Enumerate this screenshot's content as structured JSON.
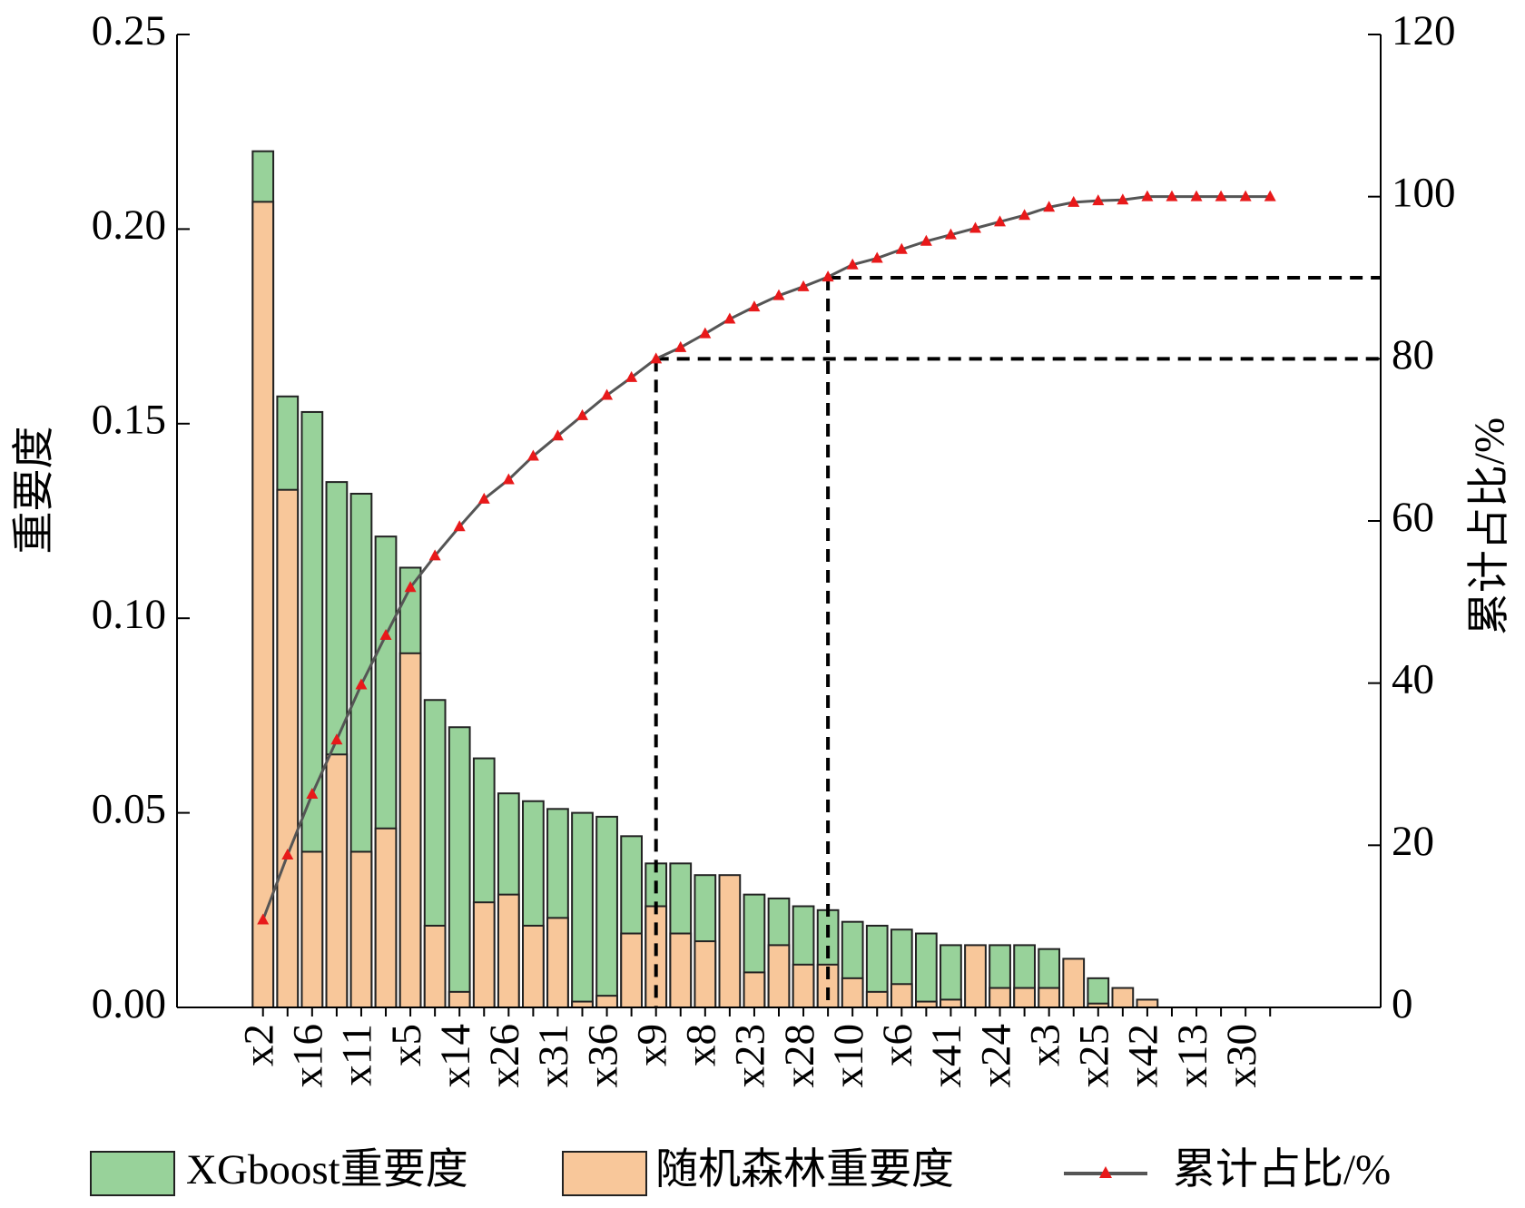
{
  "chart_data": {
    "type": "bar",
    "y_label": "重要度",
    "y2_label": "累计占比/%",
    "categories": [
      "x2",
      null,
      "x16",
      null,
      "x11",
      null,
      "x5",
      null,
      "x14",
      null,
      "x26",
      null,
      "x31",
      null,
      "x36",
      null,
      "x9",
      null,
      "x8",
      null,
      "x23",
      null,
      "x28",
      null,
      "x10",
      null,
      "x6",
      null,
      "x41",
      null,
      "x24",
      null,
      "x3",
      null,
      "x25",
      null,
      "x42",
      null,
      "x13",
      null,
      "x30",
      null
    ],
    "series": [
      {
        "name": "XGboost重要度",
        "color": "#98d29a",
        "values": [
          0.22,
          0.157,
          0.153,
          0.135,
          0.132,
          0.121,
          0.113,
          0.079,
          0.072,
          0.064,
          0.055,
          0.053,
          0.051,
          0.05,
          0.049,
          0.044,
          0.037,
          0.037,
          0.034,
          0,
          0.029,
          0.028,
          0.026,
          0.025,
          0.022,
          0.021,
          0.02,
          0.019,
          0.016,
          0,
          0.016,
          0.016,
          0.015,
          0,
          0.0075,
          0,
          0,
          0,
          0,
          0,
          0,
          0
        ]
      },
      {
        "name": "随机森林重要度",
        "color": "#f8c79a",
        "values": [
          0.207,
          0.133,
          0.04,
          0.065,
          0.04,
          0.046,
          0.091,
          0.021,
          0.004,
          0.027,
          0.029,
          0.021,
          0.023,
          0.0015,
          0.003,
          0.019,
          0.026,
          0.019,
          0.017,
          0.034,
          0.009,
          0.016,
          0.011,
          0.011,
          0.0075,
          0.004,
          0.006,
          0.0015,
          0.002,
          0.016,
          0.005,
          0.005,
          0.005,
          0.0125,
          0.001,
          0.005,
          0.002,
          0,
          0,
          0,
          0,
          0
        ]
      },
      {
        "name": "累计占比/%",
        "type": "line",
        "axis": "y2",
        "color": "#555555",
        "marker_color": "#e8191a",
        "values": [
          10.8,
          18.8,
          26.3,
          33.0,
          39.8,
          45.9,
          51.8,
          55.7,
          59.3,
          62.7,
          65.1,
          68.0,
          70.5,
          73.0,
          75.5,
          77.7,
          80.0,
          81.4,
          83.1,
          84.9,
          86.4,
          87.8,
          88.9,
          90.1,
          91.6,
          92.4,
          93.5,
          94.5,
          95.3,
          96.1,
          96.9,
          97.7,
          98.7,
          99.3,
          99.5,
          99.6,
          100,
          100,
          100,
          100,
          100,
          100
        ]
      }
    ],
    "reference_lines": [
      80,
      90
    ],
    "ylim": [
      0,
      0.25
    ],
    "yticks": [
      {
        "value": 0,
        "label": "0.00"
      },
      {
        "value": 0.05,
        "label": "0.05"
      },
      {
        "value": 0.1,
        "label": "0.10"
      },
      {
        "value": 0.15,
        "label": "0.15"
      },
      {
        "value": 0.2,
        "label": "0.20"
      },
      {
        "value": 0.25,
        "label": "0.25"
      }
    ],
    "y2lim": [
      0,
      120
    ],
    "y2ticks": [
      0,
      20,
      40,
      60,
      80,
      100,
      120
    ],
    "legend": "bottom"
  }
}
